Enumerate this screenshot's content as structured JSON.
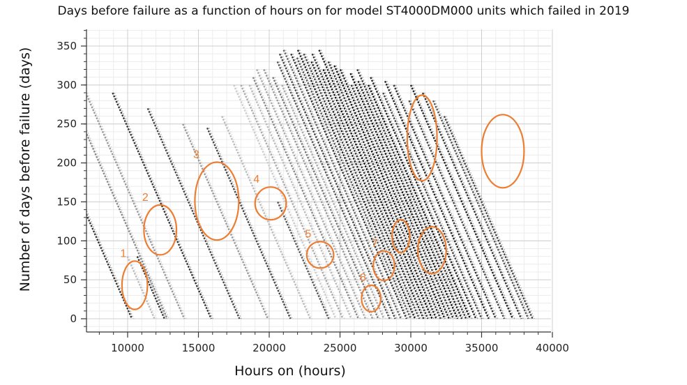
{
  "chart_data": {
    "type": "scatter",
    "title": "Days before failure as a function of hours on for model ST4000DM000 units which failed in 2019",
    "xlabel": "Hours on (hours)",
    "ylabel": "Number of days before failure (days)",
    "xlim": [
      7000,
      40000
    ],
    "ylim": [
      -10,
      370
    ],
    "xticks": [
      10000,
      15000,
      20000,
      25000,
      30000,
      35000,
      40000
    ],
    "yticks": [
      0,
      50,
      100,
      150,
      200,
      250,
      300,
      350
    ],
    "grid": true,
    "marker_color": "#222222",
    "trace_slope_hours_per_day": 24,
    "traces_description": "Each failed unit forms a diagonal trace: days before failure decreases by 1 for every 24 hours on, ending at 0 at the unit's failure hour.",
    "traces": [
      {
        "end_x": 10300,
        "start_y": 240,
        "shade": "#333333"
      },
      {
        "end_x": 11900,
        "start_y": 80,
        "shade": "#bbbbbb"
      },
      {
        "end_x": 12600,
        "start_y": 80,
        "shade": "#333333"
      },
      {
        "end_x": 12800,
        "start_y": 265,
        "shade": "#888888"
      },
      {
        "end_x": 14000,
        "start_y": 290,
        "shade": "#999999"
      },
      {
        "end_x": 15900,
        "start_y": 290,
        "shade": "#333333"
      },
      {
        "end_x": 17900,
        "start_y": 270,
        "shade": "#444444"
      },
      {
        "end_x": 19900,
        "start_y": 250,
        "shade": "#999999"
      },
      {
        "end_x": 21500,
        "start_y": 245,
        "shade": "#444444"
      },
      {
        "end_x": 22900,
        "start_y": 260,
        "shade": "#bbbbbb"
      },
      {
        "end_x": 24200,
        "start_y": 150,
        "shade": "#555555"
      },
      {
        "end_x": 24700,
        "start_y": 300,
        "shade": "#cccccc"
      },
      {
        "end_x": 25200,
        "start_y": 300,
        "shade": "#aaaaaa"
      },
      {
        "end_x": 25800,
        "start_y": 300,
        "shade": "#bbbbbb"
      },
      {
        "end_x": 26300,
        "start_y": 310,
        "shade": "#888888"
      },
      {
        "end_x": 26800,
        "start_y": 320,
        "shade": "#aaaaaa"
      },
      {
        "end_x": 27300,
        "start_y": 320,
        "shade": "#999999"
      },
      {
        "end_x": 27700,
        "start_y": 310,
        "shade": "#777777"
      },
      {
        "end_x": 28100,
        "start_y": 300,
        "shade": "#aaaaaa"
      },
      {
        "end_x": 28500,
        "start_y": 330,
        "shade": "#555555"
      },
      {
        "end_x": 28900,
        "start_y": 340,
        "shade": "#444444"
      },
      {
        "end_x": 29300,
        "start_y": 345,
        "shade": "#666666"
      },
      {
        "end_x": 29700,
        "start_y": 340,
        "shade": "#333333"
      },
      {
        "end_x": 30000,
        "start_y": 335,
        "shade": "#555555"
      },
      {
        "end_x": 30300,
        "start_y": 345,
        "shade": "#222222"
      },
      {
        "end_x": 30600,
        "start_y": 340,
        "shade": "#444444"
      },
      {
        "end_x": 30900,
        "start_y": 330,
        "shade": "#222222"
      },
      {
        "end_x": 31200,
        "start_y": 340,
        "shade": "#333333"
      },
      {
        "end_x": 31500,
        "start_y": 320,
        "shade": "#111111"
      },
      {
        "end_x": 31800,
        "start_y": 345,
        "shade": "#222222"
      },
      {
        "end_x": 32100,
        "start_y": 330,
        "shade": "#333333"
      },
      {
        "end_x": 32400,
        "start_y": 325,
        "shade": "#111111"
      },
      {
        "end_x": 32700,
        "start_y": 320,
        "shade": "#222222"
      },
      {
        "end_x": 33000,
        "start_y": 300,
        "shade": "#333333"
      },
      {
        "end_x": 33300,
        "start_y": 315,
        "shade": "#111111"
      },
      {
        "end_x": 33600,
        "start_y": 305,
        "shade": "#222222"
      },
      {
        "end_x": 33900,
        "start_y": 320,
        "shade": "#333333"
      },
      {
        "end_x": 34200,
        "start_y": 300,
        "shade": "#111111"
      },
      {
        "end_x": 34600,
        "start_y": 310,
        "shade": "#222222"
      },
      {
        "end_x": 35000,
        "start_y": 290,
        "shade": "#444444"
      },
      {
        "end_x": 35500,
        "start_y": 305,
        "shade": "#222222"
      },
      {
        "end_x": 36000,
        "start_y": 300,
        "shade": "#333333"
      },
      {
        "end_x": 36600,
        "start_y": 280,
        "shade": "#444444"
      },
      {
        "end_x": 37200,
        "start_y": 300,
        "shade": "#222222"
      },
      {
        "end_x": 37800,
        "start_y": 290,
        "shade": "#333333"
      },
      {
        "end_x": 38300,
        "start_y": 280,
        "shade": "#555555"
      },
      {
        "end_x": 38600,
        "start_y": 260,
        "shade": "#444444"
      }
    ],
    "annotations": [
      {
        "label": "1",
        "cx": 10500,
        "cy": 43,
        "rx": 900,
        "ry": 31
      },
      {
        "label": "2",
        "cx": 12300,
        "cy": 114,
        "rx": 1150,
        "ry": 32
      },
      {
        "label": "3",
        "cx": 16300,
        "cy": 151,
        "rx": 1550,
        "ry": 50
      },
      {
        "label": "4",
        "cx": 20100,
        "cy": 148,
        "rx": 1100,
        "ry": 21
      },
      {
        "label": "5",
        "cx": 23600,
        "cy": 82,
        "rx": 950,
        "ry": 17
      },
      {
        "label": "6",
        "cx": 27200,
        "cy": 26,
        "rx": 680,
        "ry": 17
      },
      {
        "label": "7",
        "cx": 28100,
        "cy": 68,
        "rx": 750,
        "ry": 19
      },
      {
        "label": "",
        "cx": 29300,
        "cy": 106,
        "rx": 620,
        "ry": 21
      },
      {
        "label": "",
        "cx": 30800,
        "cy": 232,
        "rx": 1050,
        "ry": 55
      },
      {
        "label": "",
        "cx": 31500,
        "cy": 88,
        "rx": 1000,
        "ry": 30
      },
      {
        "label": "",
        "cx": 36500,
        "cy": 215,
        "rx": 1500,
        "ry": 47
      }
    ],
    "annotation_color": "#ED7D31"
  }
}
